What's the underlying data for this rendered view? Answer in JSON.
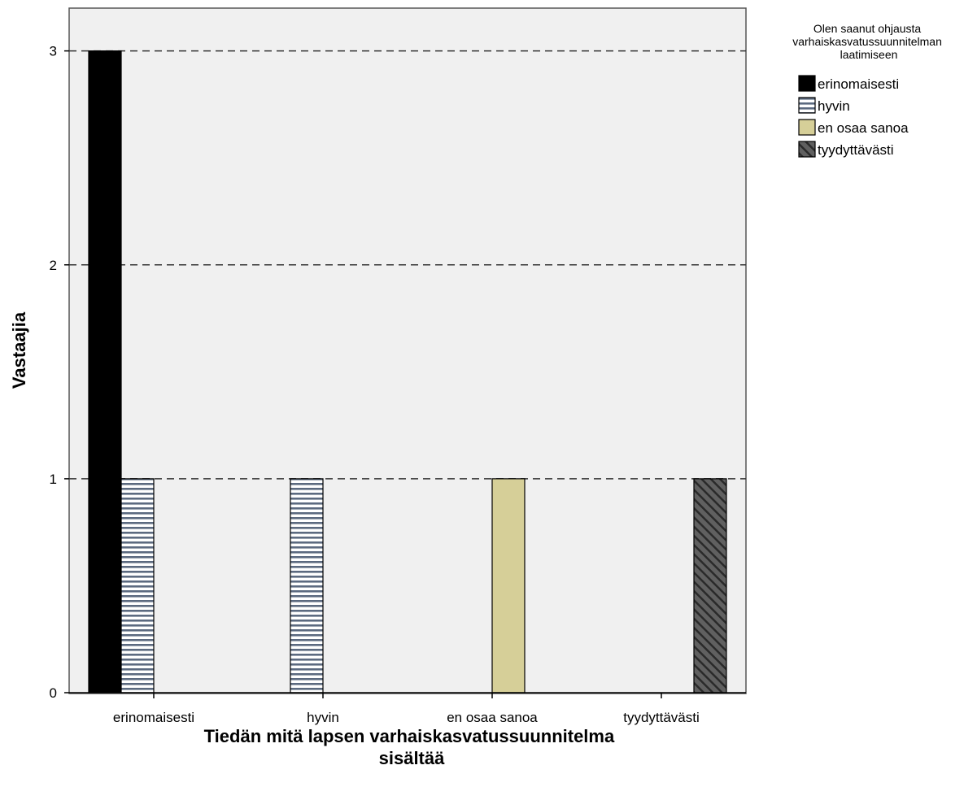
{
  "chart_data": {
    "type": "bar",
    "title": "",
    "xlabel": "Tiedän mitä lapsen varhaiskasvatussuunnitelma sisältää",
    "xlabel_lines": [
      "Tiedän mitä lapsen varhaiskasvatussuunnitelma",
      "sisältää"
    ],
    "ylabel": "Vastaajia",
    "ylim": [
      0,
      3.2
    ],
    "yticks": [
      "0",
      "1",
      "2",
      "3"
    ],
    "grid": "dashed horizontal at major ticks",
    "categories": [
      "erinomaisesti",
      "hyvin",
      "en osaa sanoa",
      "tyydyttävästi"
    ],
    "legend": {
      "placement": "right",
      "title": "Olen saanut ohjausta varhaiskasvatussuunnitelman laatimiseen",
      "title_lines": [
        "Olen saanut ohjausta",
        "varhaiskasvatussuunnitelman",
        "laatimiseen"
      ]
    },
    "series": [
      {
        "name": "erinomaisesti",
        "values": [
          3,
          0,
          0,
          0
        ],
        "color": "#000000",
        "pattern": "solid"
      },
      {
        "name": "hyvin",
        "values": [
          1,
          1,
          0,
          0
        ],
        "color": "#c8d0dc",
        "pattern": "horizontal-stripes"
      },
      {
        "name": "en osaa sanoa",
        "values": [
          0,
          0,
          1,
          0
        ],
        "color": "#d6cf98",
        "pattern": "solid"
      },
      {
        "name": "tyydyttävästi",
        "values": [
          0,
          0,
          0,
          1
        ],
        "color": "#555555",
        "pattern": "diagonal-hatch"
      }
    ],
    "colors": {
      "plot_background": "#f0f0f0",
      "gridline": "#333333",
      "frame": "#555555"
    }
  }
}
